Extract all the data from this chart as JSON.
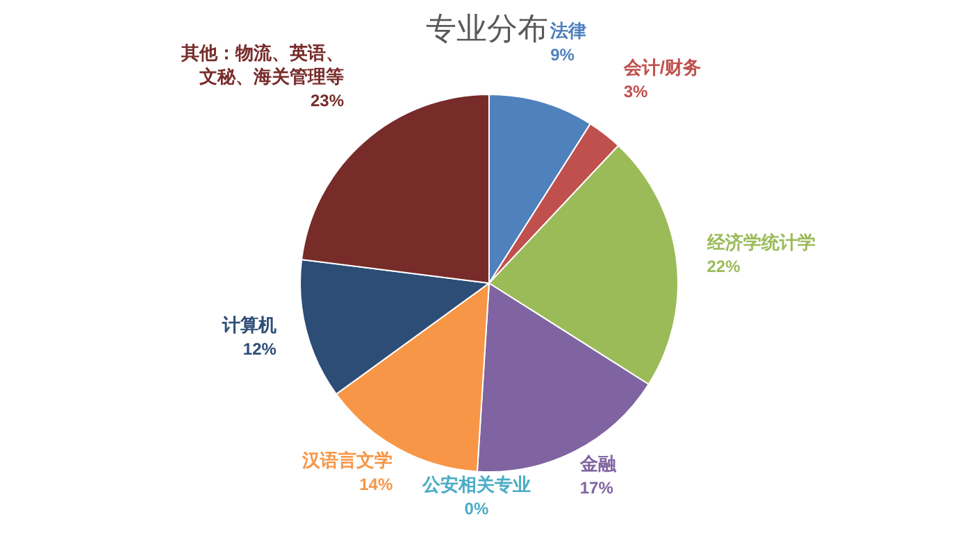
{
  "chart_data": {
    "type": "pie",
    "title": "专业分布",
    "categories": [
      "法律",
      "会计/财务",
      "经济学统计学",
      "金融",
      "公安相关专业",
      "汉语言文学",
      "计算机",
      "其他：物流、英语、文秘、海关管理等"
    ],
    "values": [
      9,
      3,
      22,
      17,
      0,
      14,
      12,
      23
    ],
    "colors": [
      "#4f81bd",
      "#c0504d",
      "#9bbb59",
      "#8064a2",
      "#4bacc6",
      "#f79646",
      "#2c4d75",
      "#772c2a"
    ],
    "value_labels": [
      "9%",
      "3%",
      "22%",
      "17%",
      "0%",
      "14%",
      "12%",
      "23%"
    ]
  }
}
